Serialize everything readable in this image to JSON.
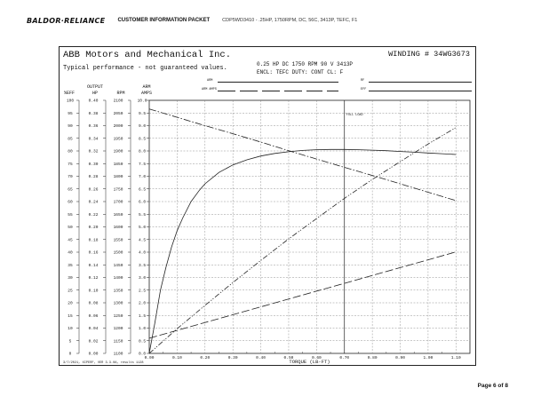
{
  "header": {
    "logo": "BALDOR·RELIANCE",
    "title": "CUSTOMER INFORMATION PACKET",
    "info": "CDP5WD3410 - .25HP, 1750RPM, DC, 56C, 3413P, TEFC, F1"
  },
  "sheet": {
    "company": "ABB Motors and Mechanical Inc.",
    "winding": "WINDING # 34WG3673",
    "typical": "Typical performance - not guaranteed values.",
    "spec_line1": "0.25 HP  DC  1750 RPM  90 V  3413P",
    "spec_line2": "ENCL: TEFC  DUTY: CONT  CL: F",
    "small_fields": [
      "ARM",
      "ARM AMPS",
      "RF",
      "EFF"
    ],
    "footer_note": "3/7/2021, XCPERF, VER 3.3.0A, results 1128",
    "full_load_label": "FULL LOAD"
  },
  "columns": {
    "c1_top": "",
    "c1_bottom": "%EFF",
    "c2_top": "OUTPUT",
    "c2_bottom": "HP",
    "c3_top": "",
    "c3_bottom": "RPM",
    "c4_top": "ARM",
    "c4_bottom": "AMPS"
  },
  "page": {
    "label": "Page 6 of 8"
  },
  "chart_data": {
    "type": "line",
    "xlabel": "TORQUE (LB-FT)",
    "x_ticks": [
      "0.00",
      "0.10",
      "0.20",
      "0.30",
      "0.40",
      "0.50",
      "0.60",
      "0.70",
      "0.80",
      "0.90",
      "1.00",
      "1.10"
    ],
    "xlim": [
      0,
      1.15
    ],
    "y_axes": [
      {
        "name": "%EFF",
        "ticks": [
          "0",
          "5",
          "10",
          "15",
          "20",
          "25",
          "30",
          "35",
          "40",
          "45",
          "50",
          "55",
          "60",
          "65",
          "70",
          "75",
          "80",
          "85",
          "90",
          "95",
          "100"
        ],
        "range": [
          0,
          100
        ]
      },
      {
        "name": "HP",
        "ticks": [
          "0.00",
          "0.02",
          "0.04",
          "0.06",
          "0.08",
          "0.10",
          "0.12",
          "0.14",
          "0.16",
          "0.18",
          "0.20",
          "0.22",
          "0.24",
          "0.26",
          "0.28",
          "0.30",
          "0.32",
          "0.34",
          "0.36",
          "0.38",
          "0.40"
        ],
        "range": [
          0,
          0.4
        ]
      },
      {
        "name": "RPM",
        "ticks": [
          "1100",
          "1150",
          "1200",
          "1250",
          "1300",
          "1350",
          "1400",
          "1450",
          "1500",
          "1550",
          "1600",
          "1650",
          "1700",
          "1750",
          "1800",
          "1850",
          "1900",
          "1950",
          "2000",
          "2050",
          "2100"
        ],
        "range": [
          1100,
          2100
        ]
      },
      {
        "name": "AMPS",
        "ticks": [
          "0.0",
          "0.5",
          "1.0",
          "1.5",
          "2.0",
          "2.5",
          "3.0",
          "3.5",
          "4.0",
          "4.5",
          "5.0",
          "5.5",
          "6.0",
          "6.5",
          "7.0",
          "7.5",
          "8.0",
          "8.5",
          "9.0",
          "9.5",
          "10.0"
        ],
        "range": [
          0,
          10
        ]
      }
    ],
    "full_load_torque": 0.7,
    "series": [
      {
        "axis": "%EFF",
        "style": "solid",
        "x": [
          0.0,
          0.02,
          0.04,
          0.06,
          0.08,
          0.1,
          0.12,
          0.15,
          0.18,
          0.2,
          0.25,
          0.3,
          0.35,
          0.4,
          0.45,
          0.5,
          0.55,
          0.6,
          0.65,
          0.7,
          0.75,
          0.8,
          0.85,
          0.9,
          0.95,
          1.0,
          1.05,
          1.1
        ],
        "y": [
          0,
          12,
          25,
          34,
          42,
          48.5,
          53.5,
          60,
          64.5,
          67,
          71.5,
          74.5,
          76.5,
          78,
          79,
          79.7,
          80.2,
          80.5,
          80.6,
          80.6,
          80.5,
          80.3,
          80.1,
          79.8,
          79.5,
          79.2,
          78.9,
          78.6
        ]
      },
      {
        "axis": "RPM",
        "style": "dashdot",
        "x": [
          0.0,
          0.1,
          0.2,
          0.3,
          0.4,
          0.5,
          0.6,
          0.7,
          0.8,
          0.9,
          1.0,
          1.1
        ],
        "y": [
          2066,
          2033,
          2000,
          1968,
          1935,
          1901,
          1868,
          1835,
          1803,
          1770,
          1737,
          1704
        ]
      },
      {
        "axis": "HP",
        "style": "dashdotdot",
        "x": [
          0.0,
          0.1,
          0.2,
          0.3,
          0.4,
          0.5,
          0.6,
          0.7,
          0.8,
          0.9,
          1.0,
          1.1
        ],
        "y": [
          0.0,
          0.039,
          0.076,
          0.112,
          0.147,
          0.181,
          0.213,
          0.245,
          0.275,
          0.303,
          0.331,
          0.357
        ]
      },
      {
        "axis": "AMPS",
        "style": "longdash",
        "x": [
          0.0,
          0.1,
          0.2,
          0.3,
          0.4,
          0.5,
          0.6,
          0.7,
          0.8,
          0.9,
          1.0,
          1.1
        ],
        "y": [
          0.6,
          0.91,
          1.22,
          1.53,
          1.84,
          2.15,
          2.46,
          2.77,
          3.08,
          3.39,
          3.7,
          4.01
        ]
      }
    ]
  }
}
